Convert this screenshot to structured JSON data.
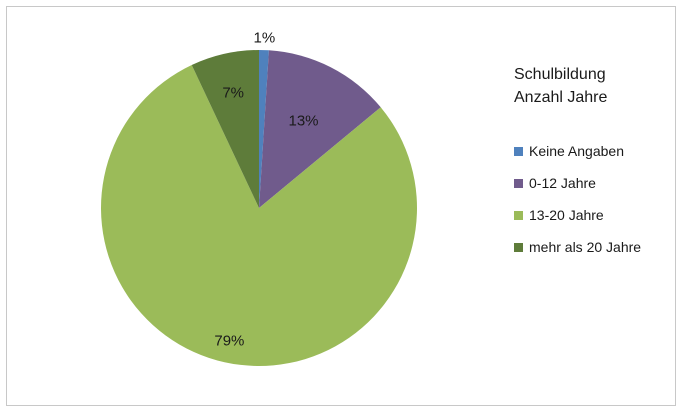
{
  "chart_data": {
    "type": "pie",
    "legend_title": [
      "Schulbildung",
      "Anzahl Jahre"
    ],
    "legend_position": "right",
    "slices": [
      {
        "name": "Keine Angaben",
        "value": 1,
        "label": "1%",
        "color": "#4f81bd"
      },
      {
        "name": "0-12 Jahre",
        "value": 13,
        "label": "13%",
        "color": "#705b8c"
      },
      {
        "name": "13-20 Jahre",
        "value": 79,
        "label": "79%",
        "color": "#9bbb59"
      },
      {
        "name": "mehr als 20 Jahre",
        "value": 7,
        "label": "7%",
        "color": "#5e7c3a"
      }
    ]
  }
}
